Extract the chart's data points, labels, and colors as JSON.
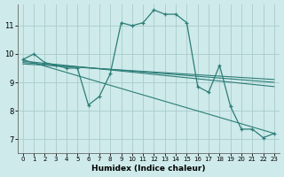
{
  "xlabel": "Humidex (Indice chaleur)",
  "bg_color": "#ceeaea",
  "grid_color": "#aacccc",
  "line_color": "#2d7d78",
  "xlim": [
    -0.5,
    23.5
  ],
  "ylim": [
    6.5,
    11.75
  ],
  "yticks": [
    7,
    8,
    9,
    10,
    11
  ],
  "xticks": [
    0,
    1,
    2,
    3,
    4,
    5,
    6,
    7,
    8,
    9,
    10,
    11,
    12,
    13,
    14,
    15,
    16,
    17,
    18,
    19,
    20,
    21,
    22,
    23
  ],
  "main_x": [
    0,
    1,
    2,
    3,
    4,
    5,
    6,
    7,
    8,
    9,
    10,
    11,
    12,
    13,
    14,
    15,
    16,
    17,
    18,
    19,
    20,
    21,
    22,
    23
  ],
  "main_y": [
    9.8,
    10.0,
    9.7,
    9.6,
    9.5,
    9.5,
    8.2,
    8.5,
    9.3,
    11.1,
    11.0,
    11.1,
    11.55,
    11.4,
    11.4,
    11.1,
    8.85,
    8.65,
    9.6,
    8.15,
    7.35,
    7.35,
    7.05,
    7.2
  ],
  "trend_lines": [
    {
      "x": [
        0,
        23
      ],
      "y": [
        9.8,
        7.2
      ]
    },
    {
      "x": [
        0,
        23
      ],
      "y": [
        9.75,
        8.85
      ]
    },
    {
      "x": [
        0,
        23
      ],
      "y": [
        9.7,
        9.0
      ]
    },
    {
      "x": [
        0,
        23
      ],
      "y": [
        9.65,
        9.1
      ]
    }
  ]
}
